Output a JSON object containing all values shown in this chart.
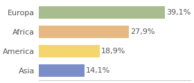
{
  "categories": [
    "Europa",
    "Africa",
    "America",
    "Asia"
  ],
  "values": [
    39.1,
    27.9,
    18.9,
    14.1
  ],
  "labels": [
    "39,1%",
    "27,9%",
    "18,9%",
    "14,1%"
  ],
  "bar_colors": [
    "#a8bc8f",
    "#e8b882",
    "#f5d56e",
    "#7b8ec8"
  ],
  "xlim": [
    0,
    47
  ],
  "background_color": "#ffffff",
  "bar_height": 0.62,
  "label_fontsize": 8.0,
  "tick_fontsize": 8.0
}
